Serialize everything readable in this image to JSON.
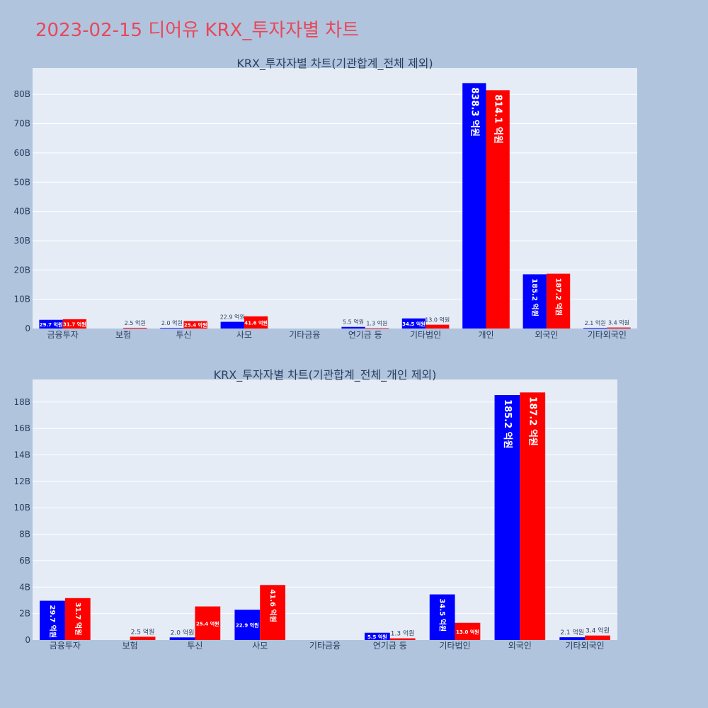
{
  "title": "2023-02-15 디어유 KRX_투자자별 차트",
  "colors": {
    "buy": "#0000ff",
    "sell": "#ff0000",
    "plot_bg": "#e5ecf6",
    "paper_bg": "#b0c4de",
    "title": "#e8475a"
  },
  "chart_data": [
    {
      "type": "bar",
      "title": "KRX_투자자별 차트(기관합계_전체 제외)",
      "categories": [
        "금융투자",
        "보험",
        "투신",
        "사모",
        "기타금융",
        "연기금 등",
        "기타법인",
        "개인",
        "외국인",
        "기타외국인"
      ],
      "series": [
        {
          "values": [
            2.97,
            0,
            0.2,
            2.29,
            0,
            0.55,
            3.45,
            83.83,
            18.52,
            0.21
          ],
          "labels": [
            "29.7 억원",
            "",
            "2.0 억원",
            "22.9 억원",
            "",
            "5.5 억원",
            "34.5 억원",
            "838.3 억원",
            "185.2 억원",
            "2.1 억원"
          ]
        },
        {
          "values": [
            3.17,
            0.25,
            2.54,
            4.16,
            0,
            0.13,
            1.3,
            81.41,
            18.72,
            0.34
          ],
          "labels": [
            "31.7 억원",
            "2.5 억원",
            "25.4 억원",
            "41.6 억원",
            "",
            "1.3 억원",
            "13.0 억원",
            "814.1 억원",
            "187.2 억원",
            "3.4 억원"
          ]
        }
      ],
      "ylim": [
        0,
        89
      ],
      "yticks": [
        0,
        10,
        20,
        30,
        40,
        50,
        60,
        70,
        80
      ],
      "ytick_labels": [
        "0",
        "10B",
        "20B",
        "30B",
        "40B",
        "50B",
        "60B",
        "70B",
        "80B"
      ],
      "unit": "B (억원 labels)",
      "grid": true
    },
    {
      "type": "bar",
      "title": "KRX_투자자별 차트(기관합계_전체_개인 제외)",
      "categories": [
        "금융투자",
        "보험",
        "투신",
        "사모",
        "기타금융",
        "연기금 등",
        "기타법인",
        "외국인",
        "기타외국인"
      ],
      "series": [
        {
          "values": [
            2.97,
            0,
            0.2,
            2.29,
            0,
            0.55,
            3.45,
            18.52,
            0.21
          ],
          "labels": [
            "29.7 억원",
            "",
            "2.0 억원",
            "22.9 억원",
            "",
            "5.5 억원",
            "34.5 억원",
            "185.2 억원",
            "2.1 억원"
          ]
        },
        {
          "values": [
            3.17,
            0.25,
            2.54,
            4.16,
            0,
            0.13,
            1.3,
            18.72,
            0.34
          ],
          "labels": [
            "31.7 억원",
            "2.5 억원",
            "25.4 억원",
            "41.6 억원",
            "",
            "1.3 억원",
            "13.0 억원",
            "187.2 억원",
            "3.4 억원"
          ]
        }
      ],
      "ylim": [
        0,
        19.7
      ],
      "yticks": [
        0,
        2,
        4,
        6,
        8,
        10,
        12,
        14,
        16,
        18
      ],
      "ytick_labels": [
        "0",
        "2B",
        "4B",
        "6B",
        "8B",
        "10B",
        "12B",
        "14B",
        "16B",
        "18B"
      ],
      "unit": "B (억원 labels)",
      "grid": true
    }
  ]
}
